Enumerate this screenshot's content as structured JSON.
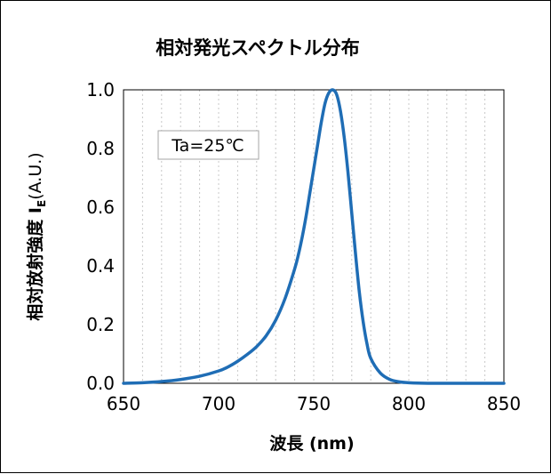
{
  "chart_data": {
    "type": "line",
    "title": "相対発光スペクトル分布",
    "xlabel": "波長 (nm)",
    "ylabel_main": "相対放射強度 I",
    "ylabel_sub": "E",
    "ylabel_tail": "(A.U.)",
    "xlim": [
      650,
      850
    ],
    "ylim": [
      0.0,
      1.0
    ],
    "x_ticks": [
      "650",
      "700",
      "750",
      "800",
      "850"
    ],
    "y_ticks": [
      "0.0",
      "0.2",
      "0.4",
      "0.6",
      "0.8",
      "1.0"
    ],
    "grid": "vertical minor lines, dotted",
    "annotation": "Ta=25℃",
    "line_color": "#1f6db5",
    "series": [
      {
        "x": [
          650,
          660,
          670,
          680,
          690,
          700,
          705,
          710,
          715,
          720,
          725,
          730,
          735,
          740,
          742,
          744,
          746,
          748,
          750,
          752,
          754,
          756,
          758,
          760,
          762,
          764,
          766,
          768,
          770,
          772,
          774,
          776,
          778,
          780,
          785,
          790,
          795,
          800,
          810,
          820,
          850
        ],
        "y": [
          0.0,
          0.002,
          0.006,
          0.013,
          0.024,
          0.042,
          0.056,
          0.075,
          0.098,
          0.125,
          0.162,
          0.215,
          0.29,
          0.39,
          0.44,
          0.5,
          0.57,
          0.65,
          0.73,
          0.81,
          0.89,
          0.955,
          0.99,
          1.0,
          0.985,
          0.93,
          0.84,
          0.72,
          0.58,
          0.44,
          0.31,
          0.21,
          0.135,
          0.085,
          0.035,
          0.013,
          0.005,
          0.002,
          0.0,
          0.0,
          0.0
        ]
      }
    ]
  }
}
